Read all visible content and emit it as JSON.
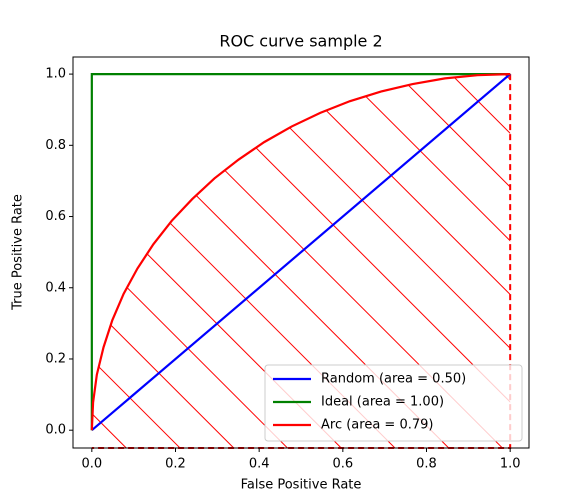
{
  "chart_data": {
    "type": "line",
    "title": "ROC curve sample 2",
    "x_label": "False Positive Rate",
    "y_label": "True Positive Rate",
    "xlim": [
      -0.045,
      1.045
    ],
    "ylim": [
      -0.05,
      1.048
    ],
    "xticks": [
      {
        "value": 0,
        "label": "0.0"
      },
      {
        "value": 0.2,
        "label": "0.2"
      },
      {
        "value": 0.4,
        "label": "0.4"
      },
      {
        "value": 0.6,
        "label": "0.6"
      },
      {
        "value": 0.8,
        "label": "0.8"
      },
      {
        "value": 1,
        "label": "1.0"
      }
    ],
    "yticks": [
      {
        "value": 0,
        "label": "0.0"
      },
      {
        "value": 0.2,
        "label": "0.2"
      },
      {
        "value": 0.4,
        "label": "0.4"
      },
      {
        "value": 0.6,
        "label": "0.6"
      },
      {
        "value": 0.8,
        "label": "0.8"
      },
      {
        "value": 1,
        "label": "1.0"
      }
    ],
    "legend": "lower right",
    "series": [
      {
        "name": "Random (area = 0.50)",
        "color": "#0000ff",
        "x": [
          0,
          1
        ],
        "values": [
          0,
          1
        ]
      },
      {
        "name": "Ideal (area = 1.00)",
        "color": "#008000",
        "x": [
          0,
          0,
          1
        ],
        "values": [
          0,
          1,
          1
        ]
      },
      {
        "name": "Arc (area = 0.79)",
        "color": "#ff0000",
        "hatch": true,
        "x": [
          0,
          0.003,
          0.012,
          0.028,
          0.049,
          0.076,
          0.109,
          0.147,
          0.191,
          0.24,
          0.293,
          0.351,
          0.412,
          0.478,
          0.546,
          0.617,
          0.691,
          0.767,
          0.844,
          0.922,
          1
        ],
        "values": [
          0,
          0.078,
          0.156,
          0.233,
          0.309,
          0.383,
          0.454,
          0.522,
          0.588,
          0.649,
          0.707,
          0.76,
          0.809,
          0.853,
          0.891,
          0.924,
          0.951,
          0.972,
          0.988,
          0.997,
          1
        ]
      }
    ]
  }
}
